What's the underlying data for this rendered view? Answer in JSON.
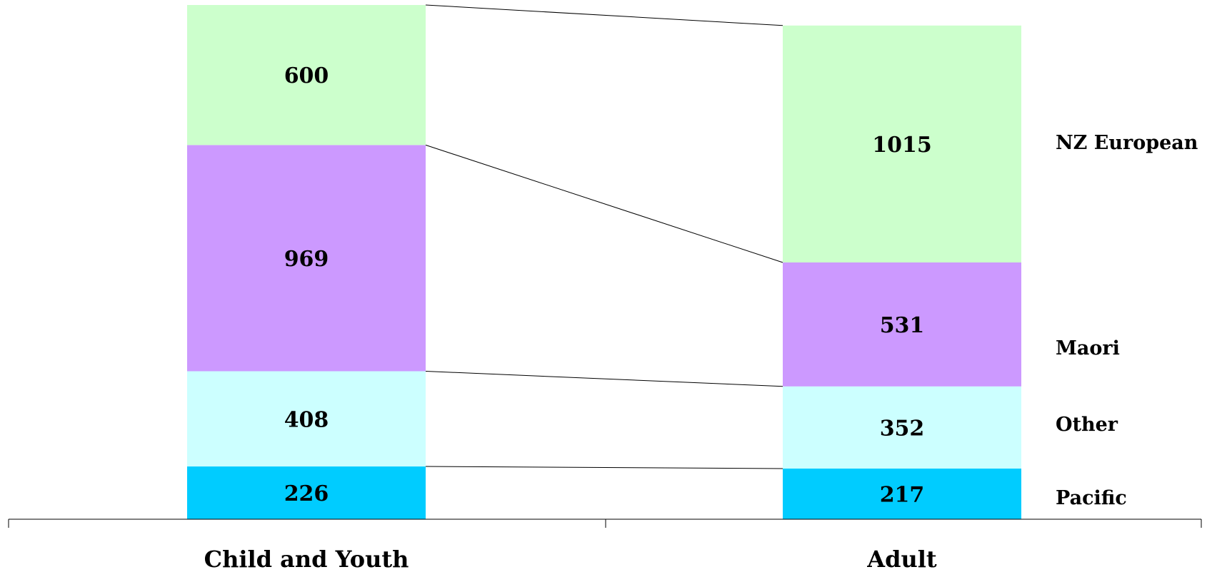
{
  "chart_data": {
    "type": "bar",
    "stacked": true,
    "categories": [
      "Child and Youth",
      "Adult"
    ],
    "series": [
      {
        "name": "Pacific",
        "values": [
          226,
          217
        ],
        "color": "#00CCFF"
      },
      {
        "name": "Other",
        "values": [
          408,
          352
        ],
        "color": "#CCFFFF"
      },
      {
        "name": "Maori",
        "values": [
          969,
          531
        ],
        "color": "#CC99FF"
      },
      {
        "name": "NZ European",
        "values": [
          600,
          1015
        ],
        "color": "#CCFFCC"
      }
    ],
    "series_lines": true,
    "legend": "right",
    "grid": false,
    "ylim": [
      0,
      2203
    ],
    "title": "",
    "xlabel": "",
    "ylabel": ""
  }
}
